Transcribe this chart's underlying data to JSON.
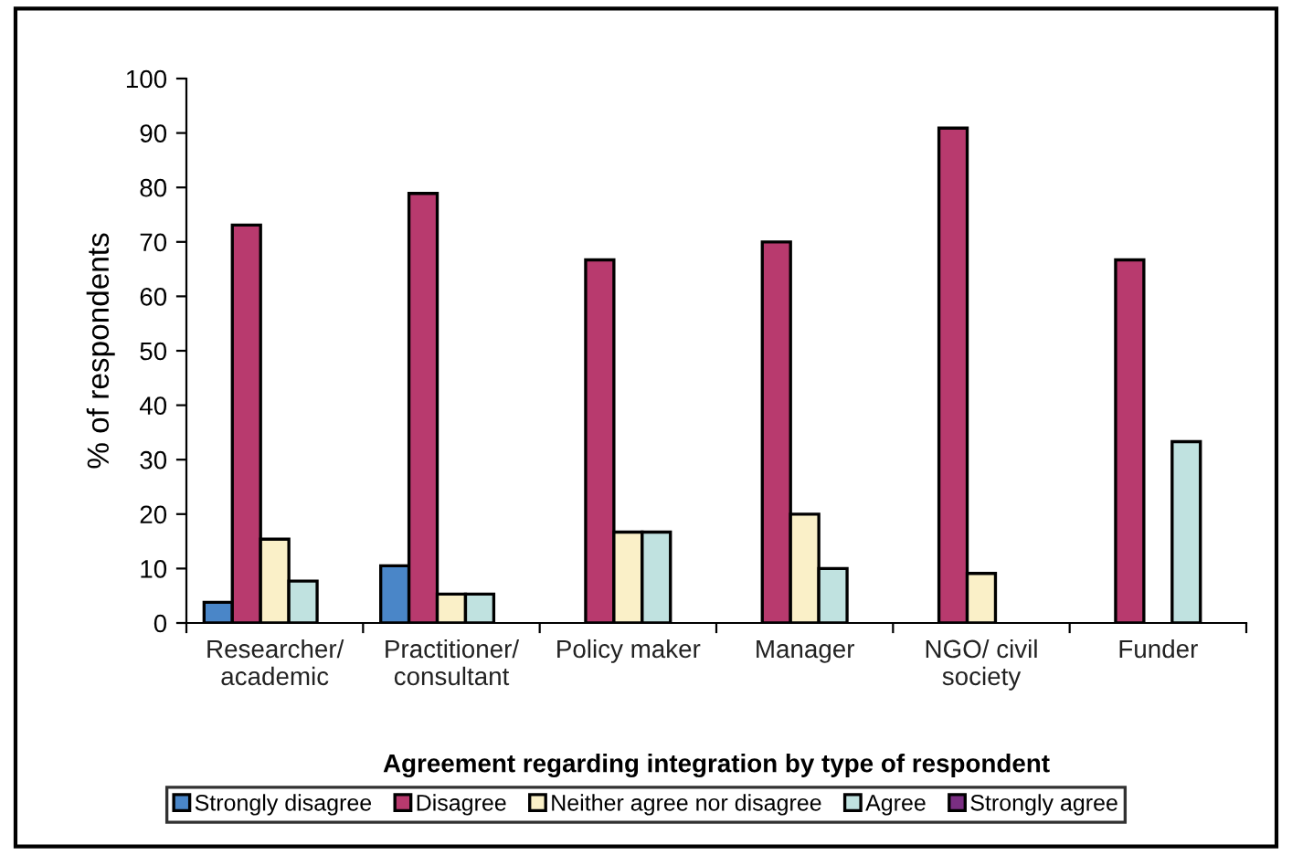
{
  "chart_data": {
    "type": "bar",
    "xlabel": "Agreement regarding integration by type of respondent",
    "ylabel": "% of respondents",
    "categories": [
      "Researcher/\nacademic",
      "Practitioner/\nconsultant",
      "Policy maker",
      "Manager",
      "NGO/ civil\nsociety",
      "Funder"
    ],
    "series": [
      {
        "name": "Strongly disagree",
        "color": "#4a86c8",
        "values": [
          3.8,
          10.5,
          null,
          null,
          null,
          null
        ]
      },
      {
        "name": "Disagree",
        "color": "#b83a6e",
        "values": [
          73.1,
          78.9,
          66.7,
          70,
          90.9,
          66.7
        ]
      },
      {
        "name": "Neither agree nor disagree",
        "color": "#faf0c8",
        "values": [
          15.4,
          5.3,
          16.7,
          20,
          9.1,
          null
        ]
      },
      {
        "name": "Agree",
        "color": "#c0e2e0",
        "values": [
          7.7,
          5.3,
          16.7,
          10,
          null,
          33.3
        ]
      },
      {
        "name": "Strongly agree",
        "color": "#7a2e82",
        "values": [
          null,
          null,
          null,
          null,
          null,
          null
        ]
      }
    ],
    "ylim": [
      0,
      100
    ],
    "yticks": [
      0,
      10,
      20,
      30,
      40,
      50,
      60,
      70,
      80,
      90,
      100
    ],
    "grid": false,
    "legend": "bottom"
  }
}
